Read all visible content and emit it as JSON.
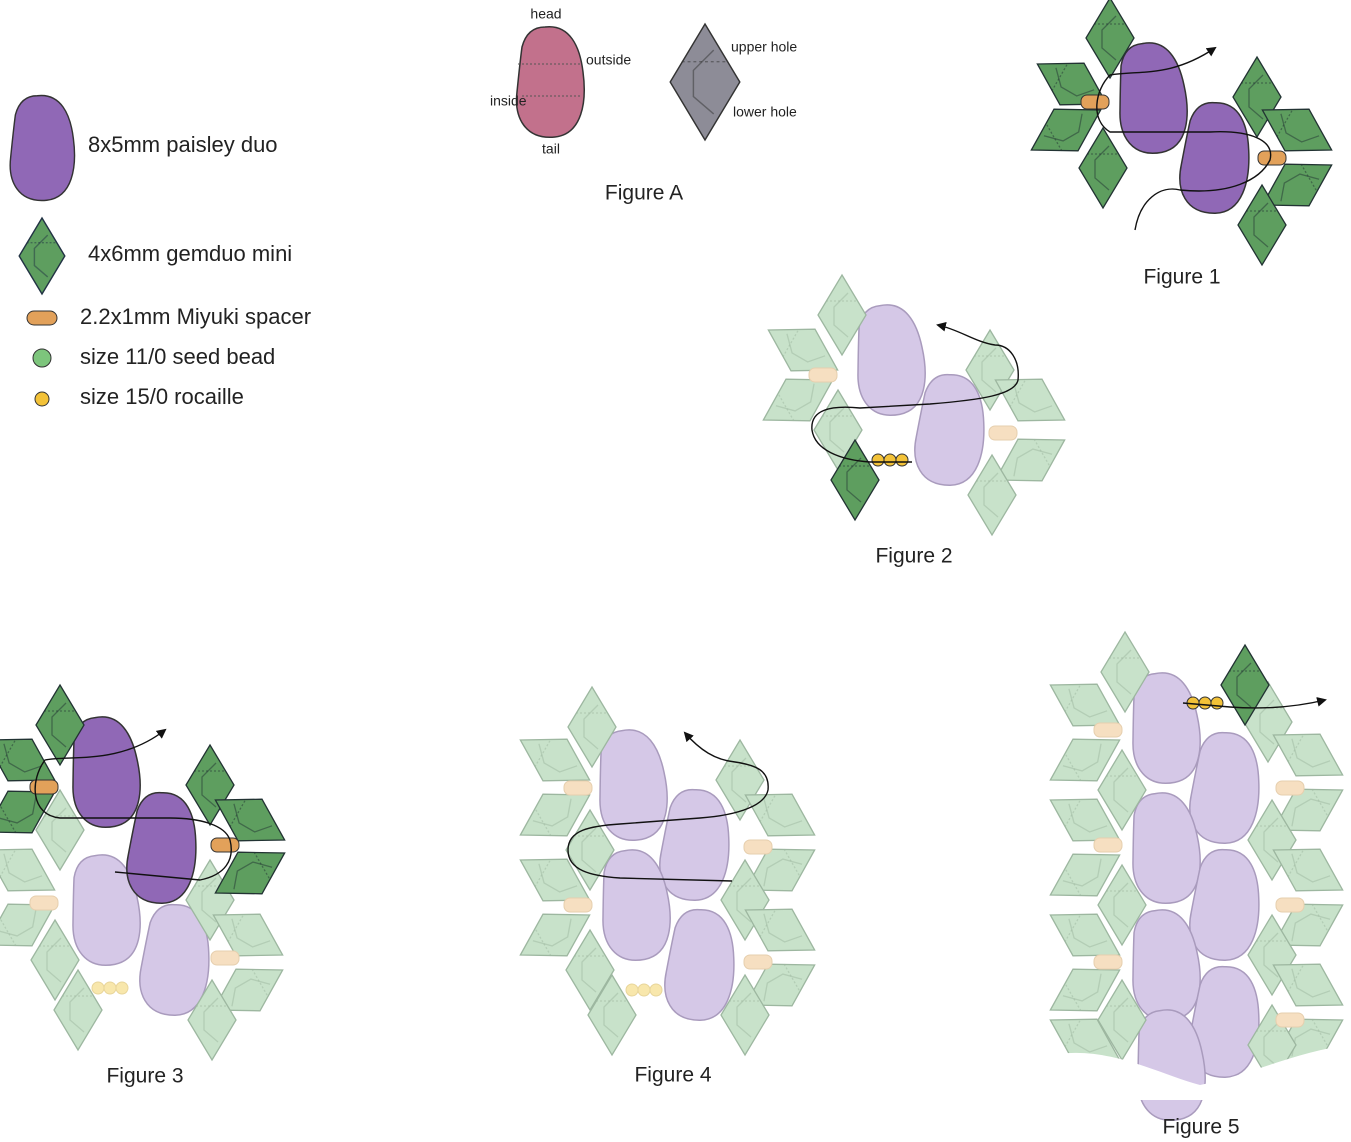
{
  "legend": [
    {
      "label": "8x5mm paisley duo"
    },
    {
      "label": "4x6mm gemduo mini"
    },
    {
      "label": "2.2x1mm Miyuki spacer"
    },
    {
      "label": "size 11/0 seed bead"
    },
    {
      "label": "size 15/0 rocaille"
    }
  ],
  "figure_a": {
    "caption": "Figure A",
    "head": "head",
    "outside": "outside",
    "inside": "inside",
    "tail": "tail",
    "upper_hole": "upper hole",
    "lower_hole": "lower hole"
  },
  "figures": [
    {
      "caption": "Figure 1"
    },
    {
      "caption": "Figure 2"
    },
    {
      "caption": "Figure 3"
    },
    {
      "caption": "Figure 4"
    },
    {
      "caption": "Figure 5"
    }
  ]
}
